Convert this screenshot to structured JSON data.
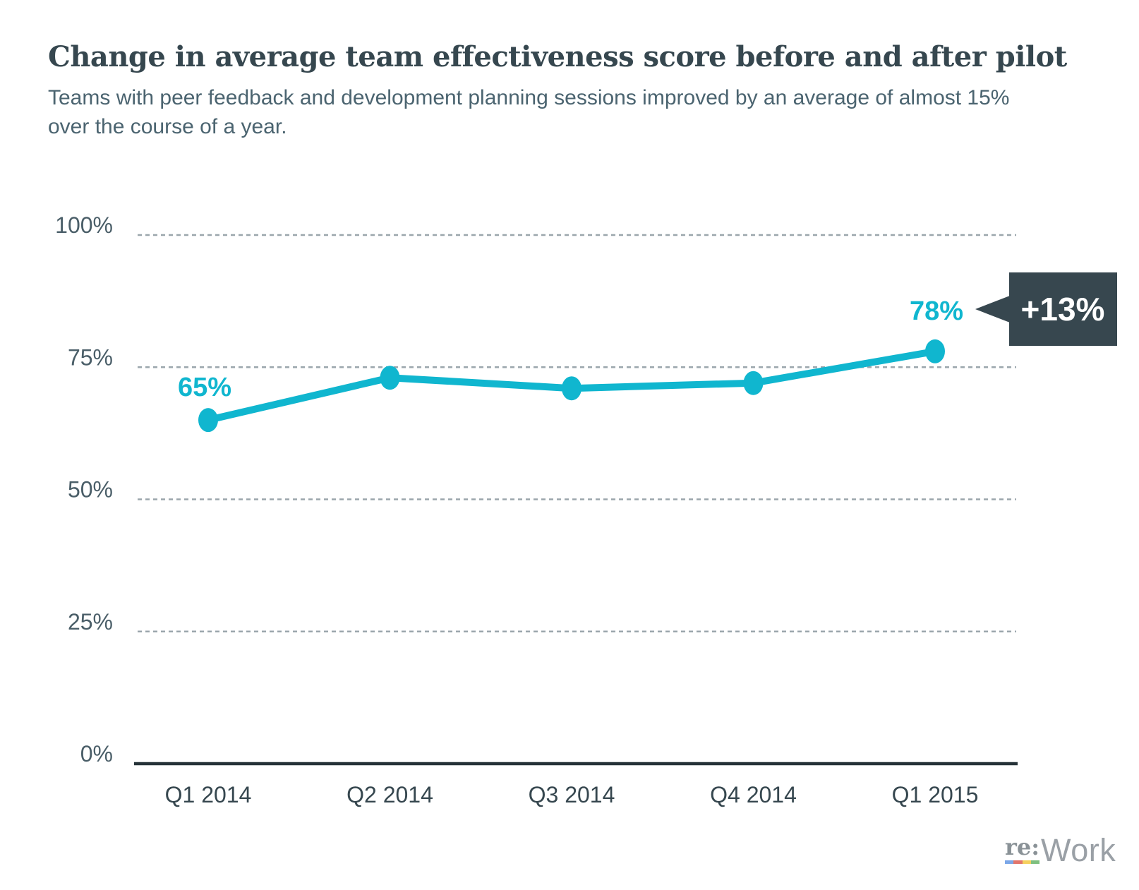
{
  "title": "Change in average team effectiveness score before and after pilot",
  "subtitle": "Teams with peer feedback and development planning sessions improved by an average of almost 15% over the course of a year.",
  "colors": {
    "line": "#10b6cf",
    "title": "#36474f",
    "subtitle": "#4b6470",
    "grid": "#9ba6ac",
    "axis": "#263238",
    "y_tick": "#4a5e68",
    "x_tick": "#36474f",
    "callout_bg": "#37474f",
    "callout_text": "#ffffff"
  },
  "chart_data": {
    "type": "line",
    "categories": [
      "Q1 2014",
      "Q2 2014",
      "Q3 2014",
      "Q4 2014",
      "Q1 2015"
    ],
    "values": [
      65,
      73,
      71,
      72,
      78
    ],
    "yticks": [
      {
        "value": 0,
        "label": "0%"
      },
      {
        "value": 25,
        "label": "25%"
      },
      {
        "value": 50,
        "label": "50%"
      },
      {
        "value": 75,
        "label": "75%"
      },
      {
        "value": 100,
        "label": "100%"
      }
    ],
    "ylim": [
      0,
      100
    ],
    "grid": "horizontal dashed",
    "legend": "none",
    "title": "Change in average team effectiveness score before and after pilot",
    "xlabel": "",
    "ylabel": "",
    "point_labels": {
      "first": "65%",
      "last": "78%"
    }
  },
  "callout": {
    "text": "+13%"
  },
  "logo": {
    "re": "re:",
    "work": "Work",
    "underline_colors": [
      "#7ba7e8",
      "#e2756b",
      "#f5d05e",
      "#7fbf7f"
    ]
  }
}
